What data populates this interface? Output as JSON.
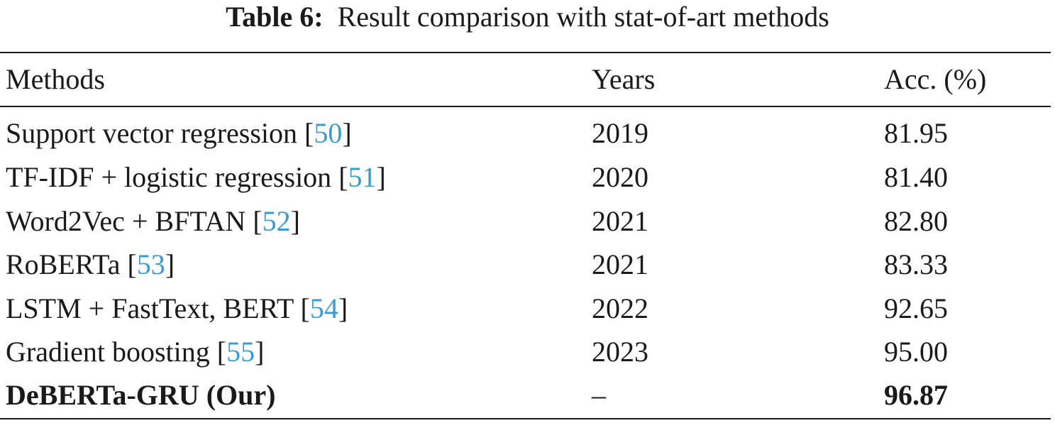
{
  "caption": {
    "label": "Table 6:",
    "text": "Result comparison with stat-of-art methods"
  },
  "headers": {
    "methods": "Methods",
    "years": "Years",
    "acc": "Acc. (%)"
  },
  "rows": [
    {
      "method": "Support vector regression",
      "ref": "50",
      "year": "2019",
      "acc": "81.95"
    },
    {
      "method": "TF-IDF + logistic regression",
      "ref": "51",
      "year": "2020",
      "acc": "81.40"
    },
    {
      "method": "Word2Vec + BFTAN",
      "ref": "52",
      "year": "2021",
      "acc": "82.80"
    },
    {
      "method": "RoBERTa",
      "ref": "53",
      "year": "2021",
      "acc": "83.33"
    },
    {
      "method": "LSTM + FastText, BERT",
      "ref": "54",
      "year": "2022",
      "acc": "92.65"
    },
    {
      "method": "Gradient boosting",
      "ref": "55",
      "year": "2023",
      "acc": "95.00"
    },
    {
      "method": "DeBERTa-GRU (Our)",
      "ref": "",
      "year": "–",
      "acc": "96.87"
    }
  ],
  "colors": {
    "text": "#1a1a1a",
    "citation_link": "#3a9bd1"
  }
}
